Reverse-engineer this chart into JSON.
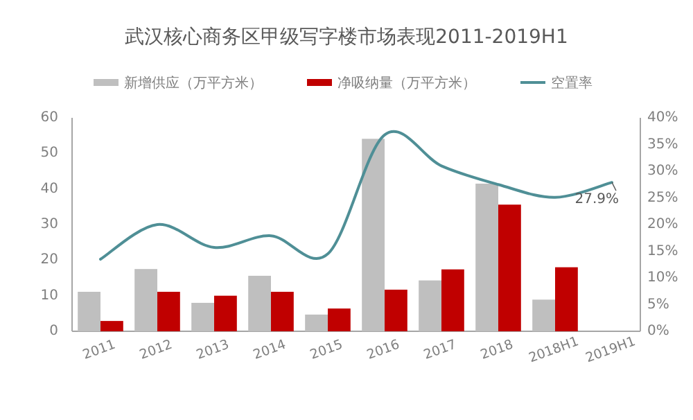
{
  "chart_data": {
    "type": "bar",
    "title": "武汉核心商务区甲级写字楼市场表现2011-2019H1",
    "categories": [
      "2011",
      "2012",
      "2013",
      "2014",
      "2015",
      "2016",
      "2017",
      "2018",
      "2018H1",
      "2019H1"
    ],
    "series": [
      {
        "name": "新增供应（万平方米）",
        "color": "#bfbfbf",
        "values": [
          11.1,
          17.5,
          8.0,
          15.6,
          4.7,
          54.1,
          14.3,
          41.5,
          8.9,
          null
        ]
      },
      {
        "name": "净吸纳量（万平方米）",
        "color": "#c00000",
        "values": [
          2.9,
          11.1,
          10.0,
          11.1,
          6.4,
          11.7,
          17.4,
          35.6,
          18.0,
          null
        ]
      },
      {
        "name": "空置率",
        "type": "line",
        "axis": "y2",
        "color": "#4f8f96",
        "values": [
          13.5,
          20.0,
          15.7,
          17.9,
          14.5,
          36.8,
          31.0,
          27.5,
          25.1,
          27.9
        ]
      }
    ],
    "ylim": [
      0,
      60
    ],
    "yticks": [
      0,
      10,
      20,
      30,
      40,
      50,
      60
    ],
    "y2lim": [
      0,
      40
    ],
    "y2ticks": [
      {
        "value": 0,
        "label": "0%"
      },
      {
        "value": 5,
        "label": "5%"
      },
      {
        "value": 10,
        "label": "10%"
      },
      {
        "value": 15,
        "label": "15%"
      },
      {
        "value": 20,
        "label": "20%"
      },
      {
        "value": 25,
        "label": "25%"
      },
      {
        "value": 30,
        "label": "30%"
      },
      {
        "value": 35,
        "label": "35%"
      },
      {
        "value": 40,
        "label": "40%"
      }
    ],
    "annotations": [
      "27.9%"
    ],
    "legend": "top",
    "grid": false
  }
}
